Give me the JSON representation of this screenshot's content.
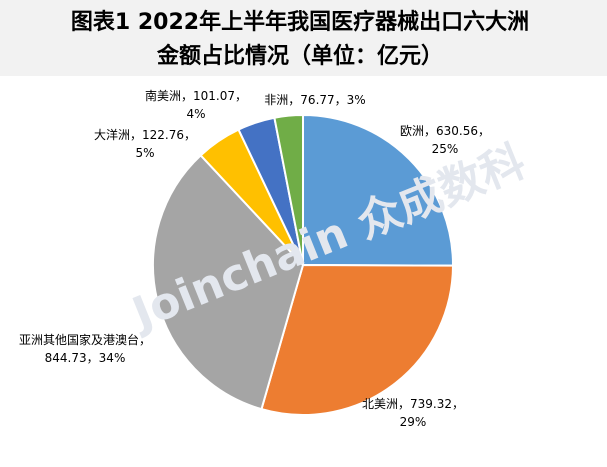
{
  "chart_data": {
    "type": "pie",
    "title_lines": [
      "图表1   2022年上半年我国医疗器械出口六大洲",
      "金额占比情况（单位：亿元）"
    ],
    "watermark": "Joinchain 众成数科",
    "categories": [
      "欧洲",
      "北美洲",
      "亚洲其他国家及港澳台",
      "大洋洲",
      "南美洲",
      "非洲"
    ],
    "values": [
      630.56,
      739.32,
      844.73,
      122.76,
      101.07,
      76.77
    ],
    "percent_labels": [
      "25%",
      "29%",
      "34%",
      "5%",
      "4%",
      "3%"
    ],
    "label_separator": "，",
    "colors": [
      "#5b9bd5",
      "#ed7d31",
      "#a5a5a5",
      "#ffc000",
      "#4472c4",
      "#70ad47"
    ]
  }
}
